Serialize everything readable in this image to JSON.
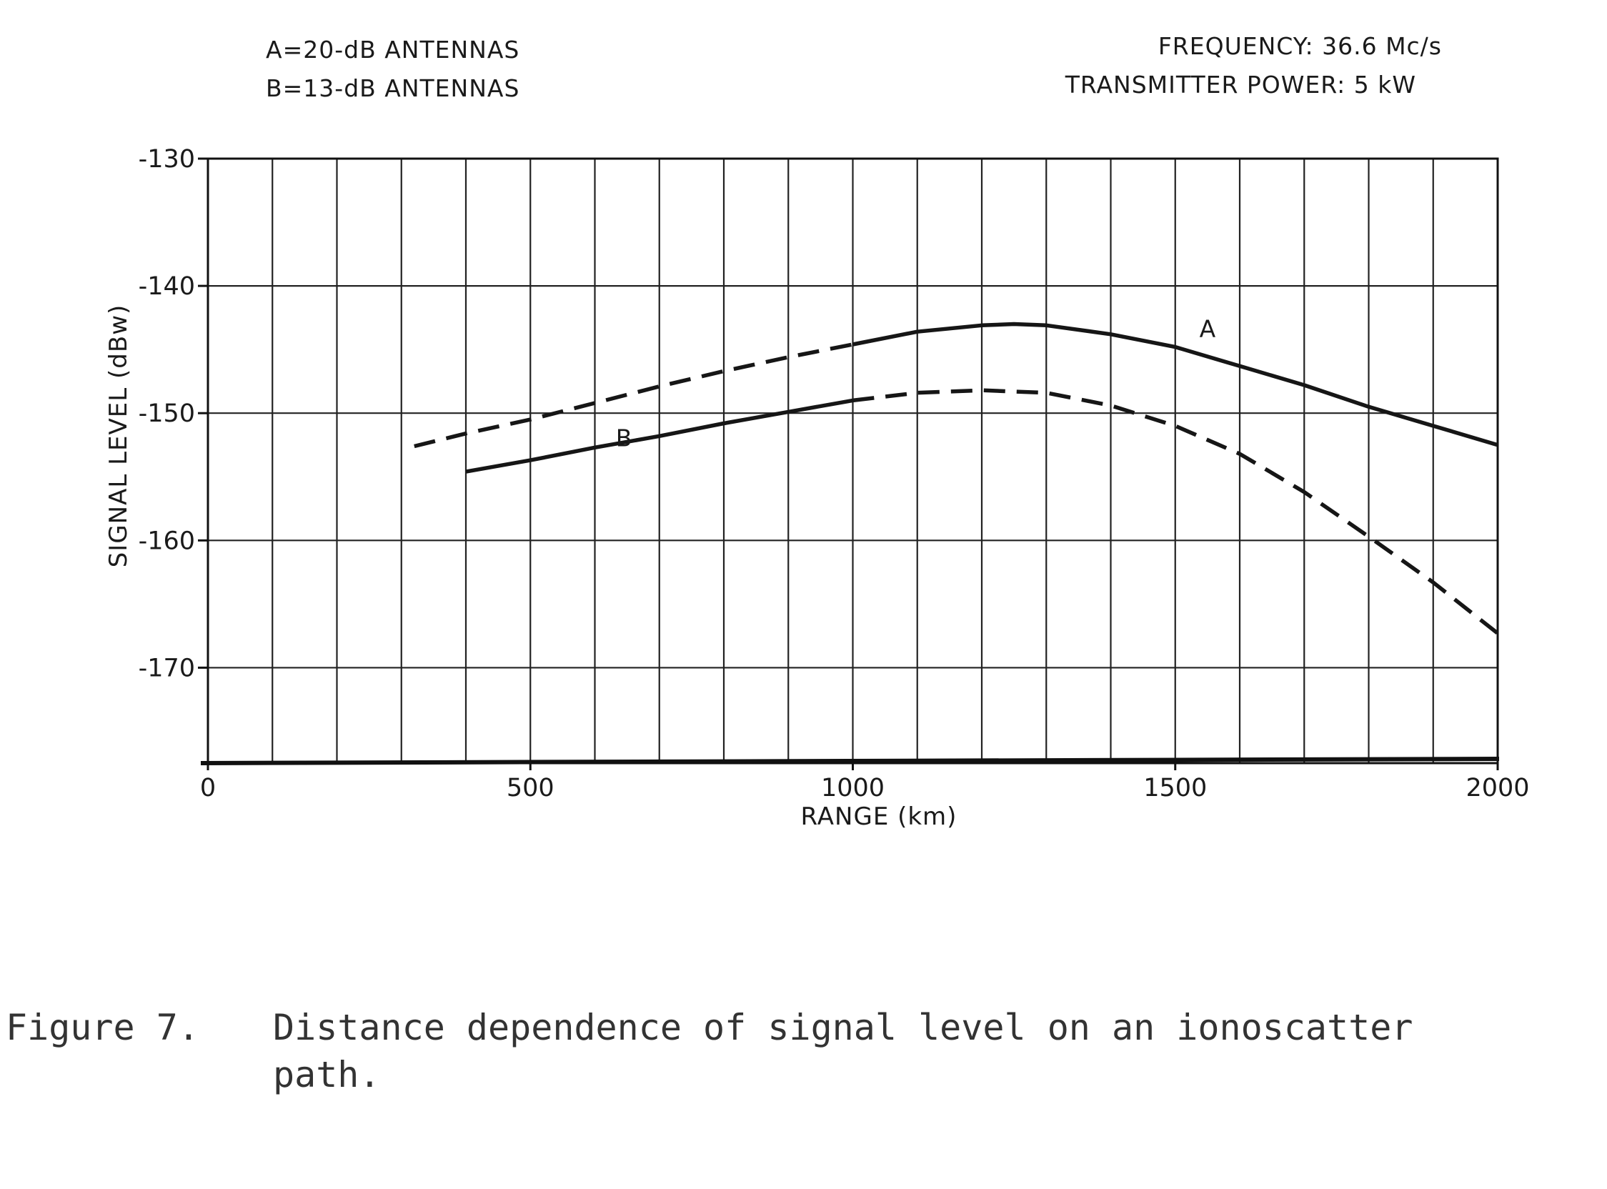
{
  "chart_data": {
    "type": "line",
    "header_left": [
      "A=20-dB ANTENNAS",
      "B=13-dB ANTENNAS"
    ],
    "header_right": [
      "FREQUENCY: 36.6 Mc/s",
      "TRANSMITTER POWER: 5 kW"
    ],
    "xlabel": "RANGE (km)",
    "ylabel": "SIGNAL LEVEL (dBw)",
    "xlim": [
      0,
      2000
    ],
    "ylim": [
      -177.5,
      -130
    ],
    "x_ticks": [
      0,
      500,
      1000,
      1500,
      2000
    ],
    "x_tick_labels": [
      "0",
      "500",
      "1000",
      "1500",
      "2000"
    ],
    "y_ticks": [
      -130,
      -140,
      -150,
      -160,
      -170
    ],
    "y_tick_labels": [
      "-130",
      "-140",
      "-150",
      "-160",
      "-170"
    ],
    "x_grid_step": 100,
    "y_grid_step": 10,
    "grid": true,
    "series": [
      {
        "name": "A",
        "segments": [
          {
            "style": "dashed",
            "x": [
              320,
              400,
              500,
              600,
              700,
              800,
              900,
              1000
            ],
            "y": [
              -152.6,
              -151.6,
              -150.5,
              -149.2,
              -147.9,
              -146.7,
              -145.6,
              -144.6
            ]
          },
          {
            "style": "solid",
            "x": [
              1000,
              1100,
              1200,
              1250,
              1300,
              1400,
              1500,
              1600,
              1700,
              1800,
              1900,
              2000
            ],
            "y": [
              -144.6,
              -143.6,
              -143.1,
              -143.0,
              -143.1,
              -143.8,
              -144.8,
              -146.3,
              -147.8,
              -149.5,
              -151.0,
              -152.5
            ]
          }
        ],
        "label_x": 1550,
        "label_y": -144.0
      },
      {
        "name": "B",
        "segments": [
          {
            "style": "solid",
            "x": [
              400,
              500,
              600,
              700,
              800,
              900,
              1000
            ],
            "y": [
              -154.6,
              -153.7,
              -152.7,
              -151.8,
              -150.8,
              -149.9,
              -149.0
            ]
          },
          {
            "style": "dashed",
            "x": [
              1000,
              1100,
              1200,
              1300,
              1400,
              1500,
              1600,
              1700,
              1800,
              1900,
              2000
            ],
            "y": [
              -149.0,
              -148.4,
              -148.2,
              -148.4,
              -149.4,
              -151.0,
              -153.2,
              -156.2,
              -159.7,
              -163.3,
              -167.3
            ]
          }
        ],
        "label_x": 645,
        "label_y": -152.6
      }
    ]
  },
  "caption": {
    "prefix": "Figure 7.",
    "line1": "Distance dependence of signal level on an ionoscatter",
    "line2": "path."
  }
}
